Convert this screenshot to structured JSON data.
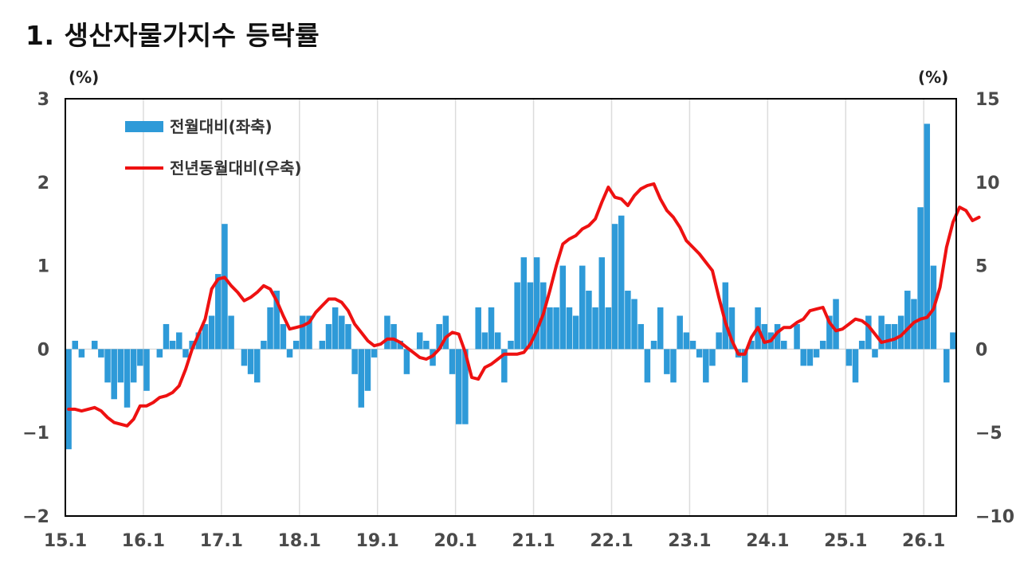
{
  "page": {
    "title": "1. 생산자물가지수 등락률"
  },
  "chart_data": {
    "type": "bar+line",
    "left_unit": "(%)",
    "right_unit": "(%)",
    "x_tick_labels": [
      "15.1",
      "16.1",
      "17.1",
      "18.1",
      "19.1",
      "20.1",
      "21.1",
      "22.1",
      "23.1",
      "24.1",
      "25.1",
      "26.1"
    ],
    "y_left": {
      "range": [
        -2,
        3
      ],
      "ticks": [
        "3",
        "2",
        "1",
        "0",
        "−1",
        "−2"
      ],
      "tick_values": [
        3,
        2,
        1,
        0,
        -1,
        -2
      ]
    },
    "y_right": {
      "range": [
        -10,
        15
      ],
      "ticks": [
        "15",
        "10",
        "5",
        "0",
        "−5",
        "−10"
      ],
      "tick_values": [
        15,
        10,
        5,
        0,
        -5,
        -10
      ]
    },
    "gridlines": "vertical",
    "legend": {
      "position": "top-left"
    },
    "series": [
      {
        "name": "전월대비(좌축)",
        "type": "bar",
        "axis": "left",
        "color": "#2E9AD8",
        "values": [
          -1.2,
          0.1,
          -0.1,
          0,
          0.1,
          -0.1,
          -0.4,
          -0.6,
          -0.4,
          -0.7,
          -0.4,
          -0.2,
          -0.5,
          0,
          -0.1,
          0.3,
          0.1,
          0.2,
          -0.1,
          0.1,
          0.2,
          0.3,
          0.4,
          0.9,
          1.5,
          0.4,
          0,
          -0.2,
          -0.3,
          -0.4,
          0.1,
          0.5,
          0.7,
          0.3,
          -0.1,
          0.1,
          0.4,
          0.4,
          0,
          0.1,
          0.3,
          0.5,
          0.4,
          0.3,
          -0.3,
          -0.7,
          -0.5,
          -0.1,
          0,
          0.4,
          0.3,
          0.1,
          -0.3,
          0,
          0.2,
          0.1,
          -0.2,
          0.3,
          0.4,
          -0.3,
          -0.9,
          -0.9,
          0,
          0.5,
          0.2,
          0.5,
          0.2,
          -0.4,
          0.1,
          0.8,
          1.1,
          0.8,
          1.1,
          0.8,
          0.5,
          0.5,
          1,
          0.5,
          0.4,
          1,
          0.7,
          0.5,
          1.1,
          0.5,
          1.5,
          1.6,
          0.7,
          0.6,
          0.3,
          -0.4,
          0.1,
          0.5,
          -0.3,
          -0.4,
          0.4,
          0.2,
          0.1,
          -0.1,
          -0.4,
          -0.2,
          0.2,
          0.8,
          0.5,
          -0.1,
          -0.4,
          0.1,
          0.5,
          0.3,
          0.2,
          0.3,
          0.1,
          0,
          0.3,
          -0.2,
          -0.2,
          -0.1,
          0.1,
          0.4,
          0.6,
          0,
          -0.2,
          -0.4,
          0.1,
          0.4,
          -0.1,
          0.4,
          0.3,
          0.3,
          0.4,
          0.7,
          0.6,
          1.7,
          2.7,
          1,
          0,
          -0.4,
          0.2
        ]
      },
      {
        "name": "전년동월대비(우축)",
        "type": "line",
        "axis": "right",
        "color": "#EE1111",
        "values": [
          -3.6,
          -3.6,
          -3.7,
          -3.6,
          -3.5,
          -3.7,
          -4.1,
          -4.4,
          -4.5,
          -4.6,
          -4.2,
          -3.4,
          -3.4,
          -3.2,
          -2.9,
          -2.8,
          -2.6,
          -2.2,
          -1.2,
          0,
          0.9,
          1.8,
          3.6,
          4.2,
          4.3,
          3.8,
          3.4,
          2.9,
          3.1,
          3.4,
          3.8,
          3.6,
          2.9,
          2,
          1.2,
          1.3,
          1.4,
          1.6,
          2.2,
          2.6,
          3,
          3,
          2.8,
          2.3,
          1.5,
          1,
          0.5,
          0.2,
          0.3,
          0.6,
          0.6,
          0.4,
          0.1,
          -0.2,
          -0.5,
          -0.6,
          -0.4,
          0,
          0.7,
          1,
          0.9,
          -0.2,
          -1.7,
          -1.8,
          -1.1,
          -0.9,
          -0.6,
          -0.3,
          -0.3,
          -0.3,
          -0.2,
          0.3,
          1.1,
          2.1,
          3.5,
          5,
          6.3,
          6.6,
          6.8,
          7.2,
          7.4,
          7.8,
          8.8,
          9.7,
          9.1,
          9,
          8.6,
          9.2,
          9.6,
          9.8,
          9.9,
          9,
          8.3,
          7.9,
          7.3,
          6.5,
          6.1,
          5.7,
          5.2,
          4.7,
          3.1,
          1.6,
          0.5,
          -0.3,
          -0.3,
          0.7,
          1.3,
          0.4,
          0.5,
          1,
          1.3,
          1.3,
          1.6,
          1.8,
          2.3,
          2.4,
          2.5,
          1.6,
          1.1,
          1.2,
          1.5,
          1.8,
          1.7,
          1.4,
          0.9,
          0.4,
          0.5,
          0.6,
          0.8,
          1.2,
          1.6,
          1.8,
          1.9,
          2.4,
          3.7,
          6.1,
          7.6,
          8.5,
          8.3,
          7.7,
          7.9
        ]
      }
    ]
  }
}
